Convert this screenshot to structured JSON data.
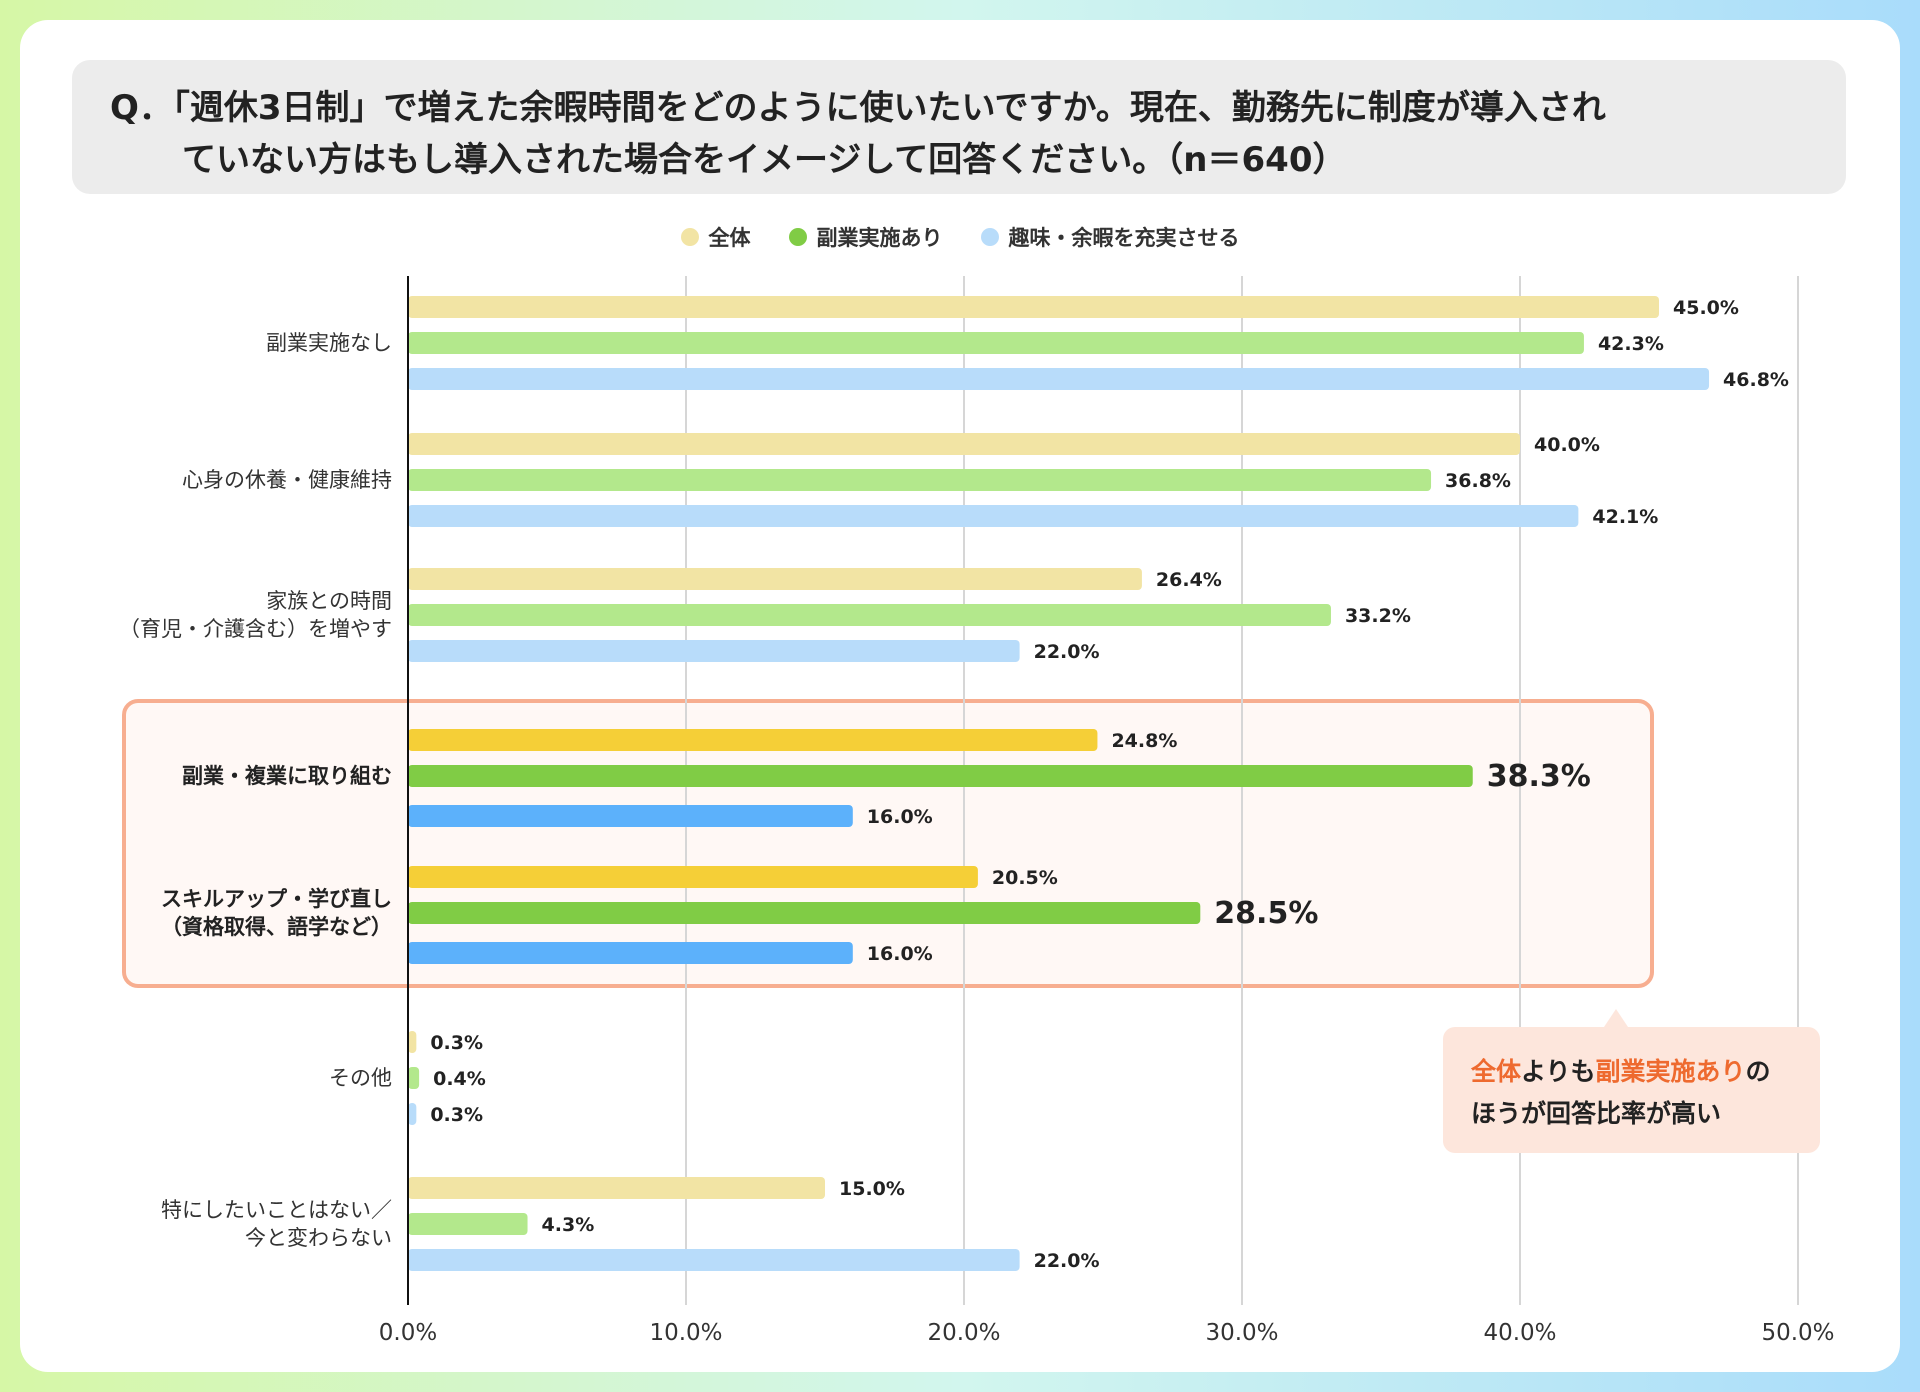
{
  "question": {
    "line1": "Q．「週休3日制」で増えた余暇時間をどのように使いたいですか。現在、勤務先に制度が導入され",
    "line2": "ていない方はもし導入された場合をイメージして回答ください。（n＝640）"
  },
  "callout": {
    "part1": "全体",
    "part2": "よりも",
    "part3": "副業実施あり",
    "part4": "の",
    "line2": "ほうが回答比率が高い"
  },
  "colors": {
    "s0": "#f2e4a4",
    "s1": "#b3e88c",
    "s2": "#b8dcfa",
    "s0_hl": "#f5cf37",
    "s1_hl": "#80cc45",
    "s2_hl": "#5cb1fb",
    "highlight_border": "#f7ae90",
    "highlight_bg": "#fff8f5",
    "callout_accent": "#ee6a2f"
  },
  "chart_data": {
    "type": "bar",
    "orientation": "horizontal",
    "categories": [
      [
        "副業実施なし"
      ],
      [
        "心身の休養・健康維持"
      ],
      [
        "家族との時間",
        "（育児・介護含む）を増やす"
      ],
      [
        "副業・複業に取り組む"
      ],
      [
        "スキルアップ・学び直し",
        "（資格取得、語学など）"
      ],
      [
        "その他"
      ],
      [
        "特にしたいことはない／",
        "今と変わらない"
      ]
    ],
    "highlighted": [
      3,
      4
    ],
    "series": [
      {
        "name": "全体",
        "values": [
          45.0,
          40.0,
          26.4,
          24.8,
          20.5,
          0.3,
          15.0
        ]
      },
      {
        "name": "副業実施あり",
        "values": [
          42.3,
          36.8,
          33.2,
          38.3,
          28.5,
          0.4,
          4.3
        ]
      },
      {
        "name": "趣味・余暇を充実させる",
        "values": [
          46.8,
          42.1,
          22.0,
          16.0,
          16.0,
          0.3,
          22.0
        ]
      }
    ],
    "value_labels": [
      [
        "45.0%",
        "40.0%",
        "26.4%",
        "24.8%",
        "20.5%",
        "0.3%",
        "15.0%"
      ],
      [
        "42.3%",
        "36.8%",
        "33.2%",
        "38.3%",
        "28.5%",
        "0.4%",
        "4.3%"
      ],
      [
        "46.8%",
        "42.1%",
        "22.0%",
        "16.0%",
        "16.0%",
        "0.3%",
        "22.0%"
      ]
    ],
    "xlim": [
      0,
      50
    ],
    "ticks": [
      0,
      10,
      20,
      30,
      40,
      50
    ],
    "tick_labels": [
      "0.0%",
      "10.0%",
      "20.0%",
      "30.0%",
      "40.0%",
      "50.0%"
    ],
    "grid": true,
    "legend_position": "top-center"
  }
}
